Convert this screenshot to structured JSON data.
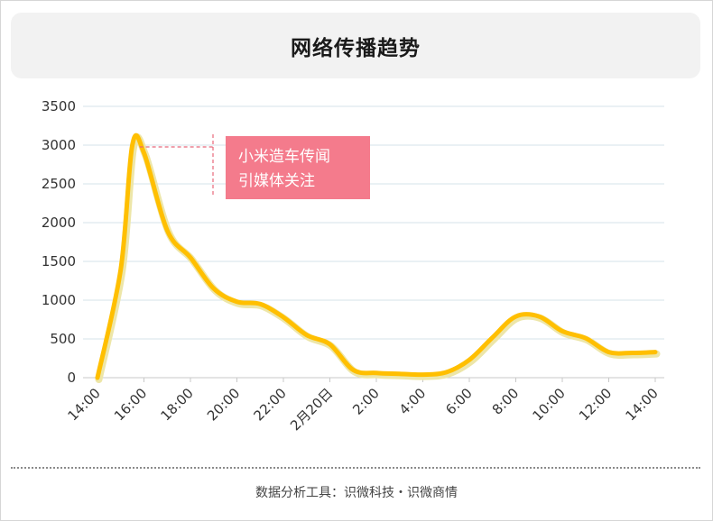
{
  "title": "网络传播趋势",
  "footer": "数据分析工具：识微科技・识微商情",
  "annotation": {
    "lines": [
      "小米造车传闻",
      "引媒体关注"
    ],
    "bg_color": "#f47b8c",
    "line_color": "#e8677a"
  },
  "colors": {
    "line": "#ffbf00",
    "line_glow": "#ede6a8",
    "grid": "#d5e3ea",
    "axis": "#c8c8c8"
  },
  "chart_data": {
    "type": "line",
    "title": "网络传播趋势",
    "xlabel": "",
    "ylabel": "",
    "ylim": [
      0,
      3500
    ],
    "y_ticks": [
      0,
      500,
      1000,
      1500,
      2000,
      2500,
      3000,
      3500
    ],
    "x_tick_labels": [
      "14:00",
      "16:00",
      "18:00",
      "20:00",
      "22:00",
      "2月20日",
      "2:00",
      "4:00",
      "6:00",
      "8:00",
      "10:00",
      "12:00",
      "14:00"
    ],
    "grid": true,
    "legend": "none",
    "x_hours": [
      0,
      1,
      1.5,
      2,
      3,
      4,
      5,
      6,
      7,
      8,
      9,
      10,
      11,
      12,
      13,
      14,
      15,
      16,
      17,
      18,
      19,
      20,
      21,
      22,
      23,
      24
    ],
    "values": [
      0,
      1400,
      3000,
      2900,
      1900,
      1550,
      1150,
      980,
      950,
      780,
      550,
      430,
      100,
      60,
      50,
      40,
      70,
      230,
      520,
      790,
      790,
      600,
      510,
      330,
      320,
      330
    ]
  }
}
